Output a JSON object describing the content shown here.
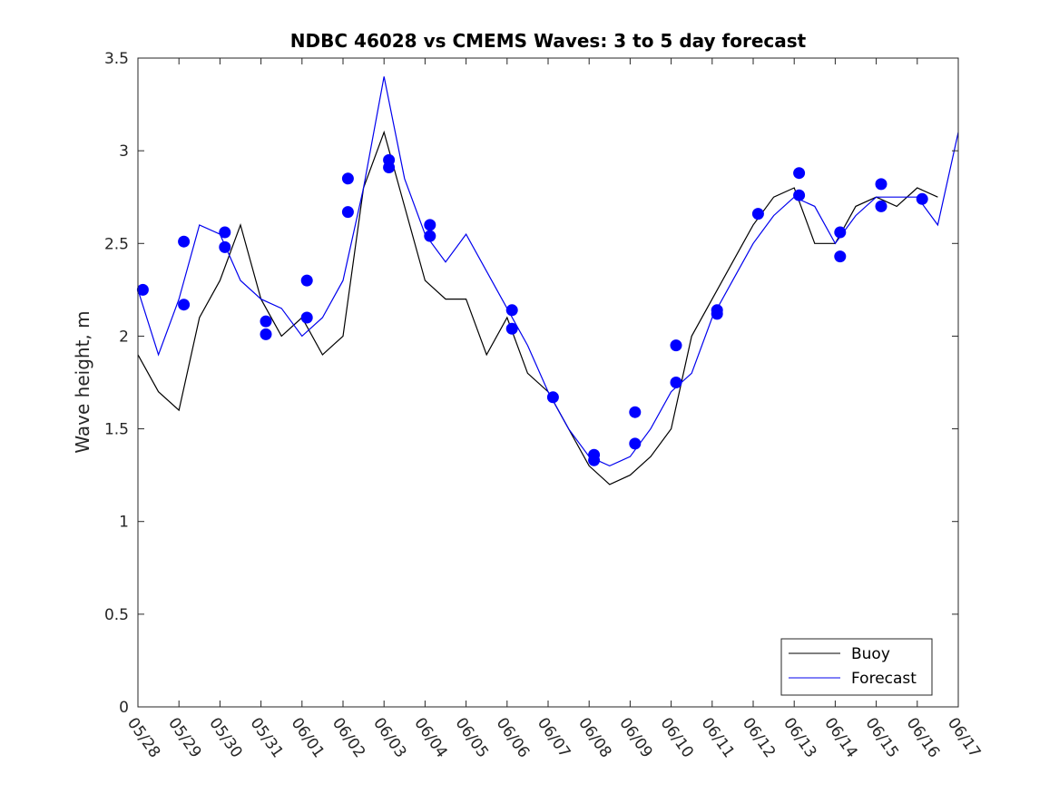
{
  "chart_data": {
    "type": "line",
    "title": "NDBC 46028 vs CMEMS Waves: 3 to 5 day forecast",
    "xlabel": "",
    "ylabel": "Wave height, m",
    "xlim": [
      "05/28",
      "06/17"
    ],
    "ylim": [
      0,
      3.5
    ],
    "x_ticks": [
      "05/28",
      "05/29",
      "05/30",
      "05/31",
      "06/01",
      "06/02",
      "06/03",
      "06/04",
      "06/05",
      "06/06",
      "06/07",
      "06/08",
      "06/09",
      "06/10",
      "06/11",
      "06/12",
      "06/13",
      "06/14",
      "06/15",
      "06/16",
      "06/17"
    ],
    "y_ticks": [
      "0",
      "0.5",
      "1",
      "1.5",
      "2",
      "2.5",
      "3",
      "3.5"
    ],
    "grid": false,
    "legend_position": "bottom-right",
    "colors": {
      "buoy": "#000000",
      "forecast": "#0000ee",
      "markers": "#0000ff"
    },
    "series": [
      {
        "name": "Buoy",
        "style": "line",
        "x": [
          "05/28",
          "05/28 12h",
          "05/29",
          "05/29 12h",
          "05/30",
          "05/30 12h",
          "05/31",
          "05/31 12h",
          "06/01",
          "06/01 12h",
          "06/02",
          "06/02 12h",
          "06/03",
          "06/03 12h",
          "06/04",
          "06/04 12h",
          "06/05",
          "06/05 12h",
          "06/06",
          "06/06 12h",
          "06/07",
          "06/07 12h",
          "06/08",
          "06/08 12h",
          "06/09",
          "06/09 12h",
          "06/10",
          "06/10 12h",
          "06/11",
          "06/11 12h",
          "06/12",
          "06/12 12h",
          "06/13",
          "06/13 12h",
          "06/14",
          "06/14 12h",
          "06/15",
          "06/15 12h",
          "06/16",
          "06/16 12h"
        ],
        "values": [
          1.9,
          1.7,
          1.6,
          2.1,
          2.3,
          2.6,
          2.2,
          2.0,
          2.1,
          1.9,
          2.0,
          2.8,
          3.1,
          2.7,
          2.3,
          2.2,
          2.2,
          1.9,
          2.1,
          1.8,
          1.7,
          1.5,
          1.3,
          1.2,
          1.25,
          1.35,
          1.5,
          2.0,
          2.2,
          2.4,
          2.6,
          2.75,
          2.8,
          2.5,
          2.5,
          2.7,
          2.75,
          2.7,
          2.8,
          2.75
        ]
      },
      {
        "name": "Forecast",
        "style": "line",
        "x": [
          "05/28",
          "05/28 12h",
          "05/29",
          "05/29 12h",
          "05/30",
          "05/30 12h",
          "05/31",
          "05/31 12h",
          "06/01",
          "06/01 12h",
          "06/02",
          "06/02 12h",
          "06/03",
          "06/03 12h",
          "06/04",
          "06/04 12h",
          "06/05",
          "06/05 12h",
          "06/06",
          "06/06 12h",
          "06/07",
          "06/07 12h",
          "06/08",
          "06/08 12h",
          "06/09",
          "06/09 12h",
          "06/10",
          "06/10 12h",
          "06/11",
          "06/11 12h",
          "06/12",
          "06/12 12h",
          "06/13",
          "06/13 12h",
          "06/14",
          "06/14 12h",
          "06/15",
          "06/15 12h",
          "06/16",
          "06/16 12h",
          "06/17"
        ],
        "values": [
          2.25,
          1.9,
          2.2,
          2.6,
          2.55,
          2.3,
          2.2,
          2.15,
          2.0,
          2.1,
          2.3,
          2.8,
          3.4,
          2.85,
          2.55,
          2.4,
          2.55,
          2.35,
          2.15,
          1.95,
          1.7,
          1.5,
          1.35,
          1.3,
          1.35,
          1.5,
          1.7,
          1.8,
          2.1,
          2.3,
          2.5,
          2.65,
          2.75,
          2.7,
          2.5,
          2.65,
          2.75,
          2.75,
          2.75,
          2.6,
          3.1
        ]
      },
      {
        "name": "",
        "style": "markers",
        "x": [
          "05/28",
          "05/29",
          "05/29",
          "05/30",
          "05/30",
          "05/31",
          "05/31",
          "06/01",
          "06/01",
          "06/02",
          "06/02",
          "06/03",
          "06/03",
          "06/04",
          "06/04",
          "06/06",
          "06/06",
          "06/07",
          "06/08",
          "06/08",
          "06/09",
          "06/09",
          "06/10",
          "06/10",
          "06/11",
          "06/11",
          "06/12",
          "06/13",
          "06/13",
          "06/14",
          "06/14",
          "06/15",
          "06/15",
          "06/16"
        ],
        "values": [
          2.25,
          2.51,
          2.17,
          2.56,
          2.48,
          2.08,
          2.01,
          2.3,
          2.1,
          2.85,
          2.67,
          2.95,
          2.91,
          2.6,
          2.54,
          2.14,
          2.04,
          1.67,
          1.36,
          1.33,
          1.59,
          1.42,
          1.95,
          1.75,
          2.14,
          2.12,
          2.66,
          2.88,
          2.76,
          2.56,
          2.43,
          2.82,
          2.7,
          2.74
        ]
      }
    ]
  }
}
